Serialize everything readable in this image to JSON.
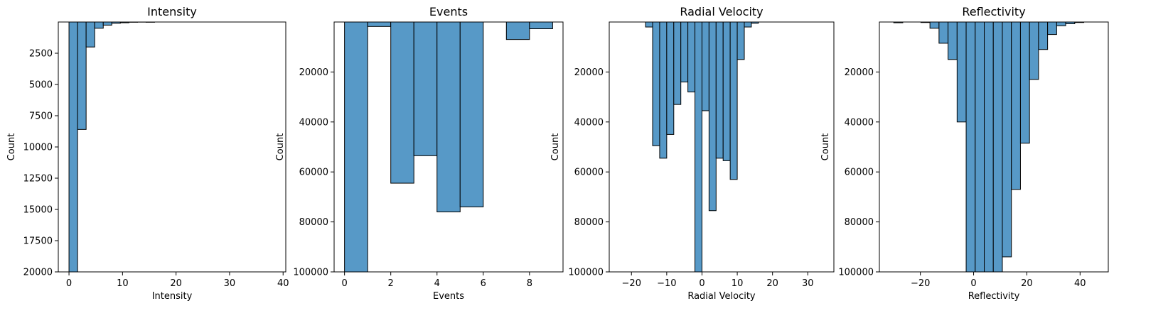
{
  "chart_data": [
    {
      "type": "bar",
      "title": "Intensity",
      "xlabel": "Intensity",
      "ylabel": "Count",
      "xlim": [
        -2.0,
        40.5
      ],
      "ylim": [
        0,
        20000
      ],
      "y_inverted": true,
      "grid": false,
      "bar_color": "#5799C7",
      "edge_color": "#000000",
      "xticks": [
        0,
        10,
        20,
        30,
        40
      ],
      "xtick_labels": [
        "0",
        "10",
        "20",
        "30",
        "40"
      ],
      "yticks": [
        2500,
        5000,
        7500,
        10000,
        12500,
        15000,
        17500,
        20000
      ],
      "ytick_labels": [
        "2500",
        "5000",
        "7500",
        "10000",
        "12500",
        "15000",
        "17500",
        "20000"
      ],
      "bin_edges": [
        0,
        1.6,
        3.2,
        4.8,
        6.4,
        8.0,
        9.6,
        11.2,
        12.8,
        14.4,
        16.0
      ],
      "counts": [
        20000,
        8600,
        2000,
        500,
        250,
        100,
        60,
        20,
        10,
        20
      ]
    },
    {
      "type": "bar",
      "title": "Events",
      "xlabel": "Events",
      "ylabel": "Count",
      "xlim": [
        -0.45,
        9.45
      ],
      "ylim": [
        0,
        100000
      ],
      "y_inverted": true,
      "grid": false,
      "bar_color": "#5799C7",
      "edge_color": "#000000",
      "xticks": [
        0,
        2,
        4,
        6,
        8
      ],
      "xtick_labels": [
        "0",
        "2",
        "4",
        "6",
        "8"
      ],
      "yticks": [
        20000,
        40000,
        60000,
        80000,
        100000
      ],
      "ytick_labels": [
        "20000",
        "40000",
        "60000",
        "80000",
        "100000"
      ],
      "bin_edges": [
        0,
        1,
        2,
        3,
        4,
        5,
        6,
        7,
        8,
        9
      ],
      "counts": [
        100000,
        1800,
        64500,
        53500,
        76000,
        74000,
        0,
        7000,
        2700
      ]
    },
    {
      "type": "bar",
      "title": "Radial Velocity",
      "xlabel": "Radial Velocity",
      "ylabel": "Count",
      "xlim": [
        -26.3,
        37.4
      ],
      "ylim": [
        0,
        100000
      ],
      "y_inverted": true,
      "grid": false,
      "bar_color": "#5799C7",
      "edge_color": "#000000",
      "xticks": [
        -20,
        -10,
        0,
        10,
        20,
        30
      ],
      "xtick_labels": [
        "−20",
        "−10",
        "0",
        "10",
        "20",
        "30"
      ],
      "yticks": [
        20000,
        40000,
        60000,
        80000,
        100000
      ],
      "ytick_labels": [
        "20000",
        "40000",
        "60000",
        "80000",
        "100000"
      ],
      "bin_edges": [
        -16.0,
        -14.0,
        -12.0,
        -10.0,
        -8.0,
        -6.0,
        -4.0,
        -2.0,
        0.0,
        2.0,
        4.0,
        6.0,
        8.0,
        10.0,
        12.0,
        14.0,
        16.0,
        18.0,
        20.0
      ],
      "counts": [
        2000,
        49500,
        54500,
        45000,
        33000,
        24000,
        28000,
        100000,
        35500,
        75500,
        54500,
        55500,
        63000,
        15000,
        2000,
        500,
        0,
        0
      ]
    },
    {
      "type": "bar",
      "title": "Reflectivity",
      "xlabel": "Reflectivity",
      "ylabel": "Count",
      "xlim": [
        -35.4,
        50.6
      ],
      "ylim": [
        0,
        100000
      ],
      "y_inverted": true,
      "grid": false,
      "bar_color": "#5799C7",
      "edge_color": "#000000",
      "xticks": [
        -20,
        0,
        20,
        40
      ],
      "xtick_labels": [
        "−20",
        "0",
        "20",
        "40"
      ],
      "yticks": [
        20000,
        40000,
        60000,
        80000,
        100000
      ],
      "ytick_labels": [
        "20000",
        "40000",
        "60000",
        "80000",
        "100000"
      ],
      "bin_edges": [
        -30.0,
        -26.6,
        -23.2,
        -19.8,
        -16.4,
        -13.0,
        -9.6,
        -6.2,
        -2.8,
        0.6,
        4.0,
        7.4,
        10.8,
        14.2,
        17.6,
        21.0,
        24.4,
        27.8,
        31.2,
        34.6,
        38.0,
        41.4
      ],
      "counts": [
        300,
        0,
        0,
        200,
        2500,
        8500,
        15000,
        40000,
        100000,
        100000,
        100000,
        100000,
        94000,
        67000,
        48500,
        23000,
        11000,
        5000,
        1500,
        700,
        200
      ]
    }
  ]
}
